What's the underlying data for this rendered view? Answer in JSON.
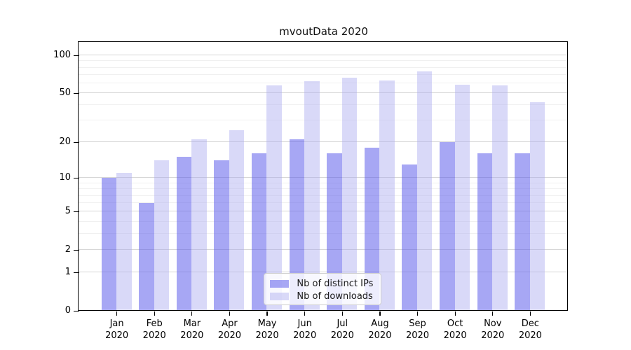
{
  "chart_data": {
    "type": "bar",
    "title": "mvoutData 2020",
    "categories": [
      "Jan",
      "Feb",
      "Mar",
      "Apr",
      "May",
      "Jun",
      "Jul",
      "Aug",
      "Sep",
      "Oct",
      "Nov",
      "Dec"
    ],
    "year_label": "2020",
    "series": [
      {
        "name": "Nb of distinct IPs",
        "color": "rgba(95,95,235,0.55)",
        "values": [
          10,
          6,
          15,
          14,
          16,
          21,
          16,
          18,
          13,
          20,
          16,
          16
        ]
      },
      {
        "name": "Nb of downloads",
        "color": "rgba(170,170,240,0.45)",
        "values": [
          11,
          14,
          21,
          25,
          57,
          62,
          66,
          63,
          74,
          58,
          57,
          42
        ]
      }
    ],
    "y_axis": {
      "scale": "symlog",
      "tick_values": [
        0,
        1,
        2,
        5,
        10,
        20,
        50,
        100
      ],
      "tick_labels": [
        "0",
        "1",
        "2",
        "5",
        "10",
        "20",
        "50",
        "100"
      ],
      "minor_tick_values": [
        3,
        4,
        6,
        7,
        8,
        9,
        30,
        40,
        60,
        70,
        80,
        90
      ],
      "ylim": [
        0,
        127
      ]
    },
    "grid": true,
    "legend_position": "lower-center"
  }
}
